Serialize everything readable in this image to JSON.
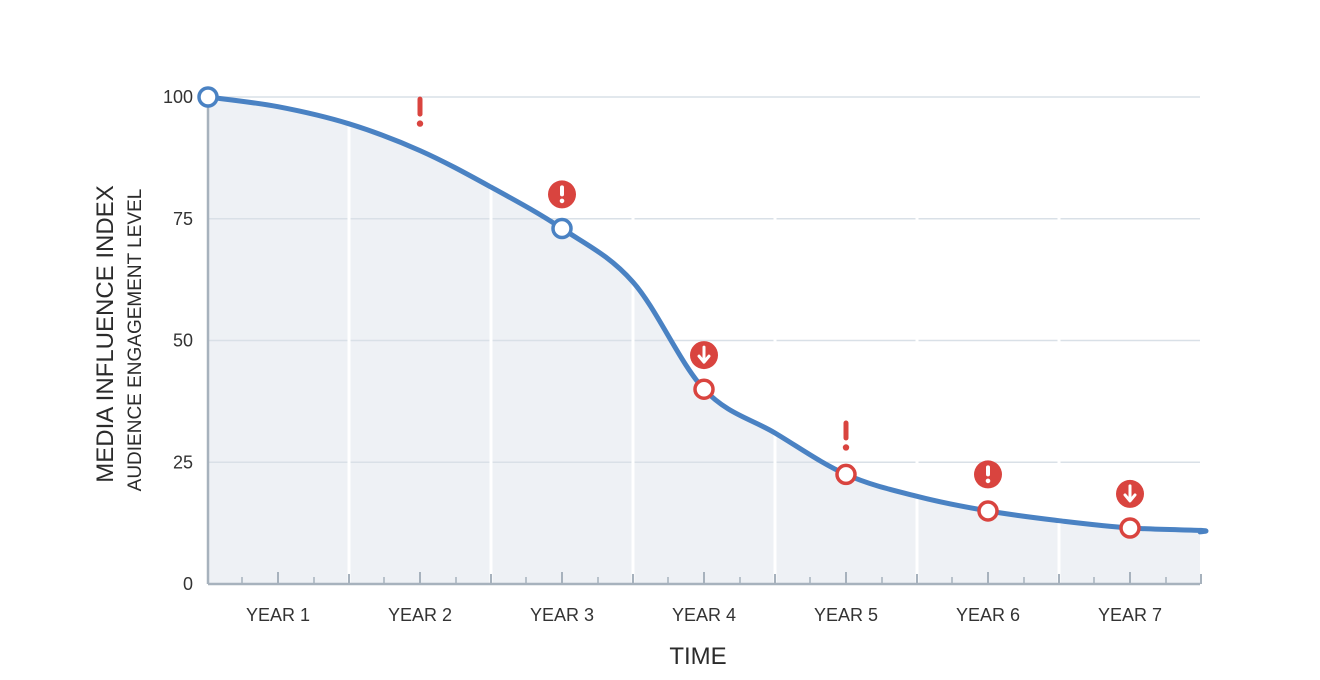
{
  "chart_data": {
    "type": "line",
    "title": "",
    "xlabel": "TIME",
    "ylabel": "MEDIA INFLUENCE INDEX",
    "ylabel_secondary": "AUDIENCE ENGAGEMENT LEVEL",
    "ylim": [
      0,
      100
    ],
    "yticks": [
      0,
      25,
      50,
      75,
      100
    ],
    "categories": [
      "YEAR 1",
      "YEAR 2",
      "YEAR 3",
      "YEAR 4",
      "YEAR 5",
      "YEAR 6",
      "YEAR 7"
    ],
    "grid": true,
    "legend": "none",
    "series": [
      {
        "color": "#4a82c3",
        "x": [
          0,
          0.5,
          1,
          1.5,
          2,
          2.5,
          3,
          3.5,
          4,
          4.5,
          5,
          5.5,
          6,
          6.5,
          7
        ],
        "y": [
          100,
          98,
          94.5,
          89,
          81.5,
          73,
          62,
          40,
          31,
          22.5,
          18,
          15,
          13,
          11.5,
          11
        ]
      }
    ],
    "markers": [
      {
        "x": 0,
        "y": 100,
        "style": "blue-ring"
      },
      {
        "x": 2.5,
        "y": 73,
        "style": "blue-ring"
      },
      {
        "x": 3.5,
        "y": 40,
        "style": "red-ring"
      },
      {
        "x": 4.5,
        "y": 22.5,
        "style": "red-ring"
      },
      {
        "x": 5.5,
        "y": 15,
        "style": "red-ring"
      },
      {
        "x": 6.5,
        "y": 11.5,
        "style": "red-ring"
      }
    ],
    "alerts": [
      {
        "x": 1.5,
        "y": 97,
        "icon": "exclamation-icon"
      },
      {
        "x": 2.5,
        "y": 80,
        "icon": "exclamation-circle-icon"
      },
      {
        "x": 3.5,
        "y": 47,
        "icon": "down-arrow-circle-icon"
      },
      {
        "x": 4.5,
        "y": 30.5,
        "icon": "exclamation-icon"
      },
      {
        "x": 5.5,
        "y": 22.5,
        "icon": "exclamation-circle-icon"
      },
      {
        "x": 6.5,
        "y": 18.5,
        "icon": "down-arrow-circle-icon"
      }
    ],
    "colors": {
      "line": "#4a82c3",
      "alert": "#d9443f",
      "fill": "#eef1f5",
      "grid": "#d9e0e7",
      "axis": "#a7b2bd"
    }
  }
}
